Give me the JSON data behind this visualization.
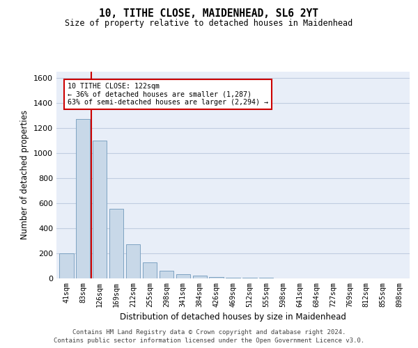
{
  "title": "10, TITHE CLOSE, MAIDENHEAD, SL6 2YT",
  "subtitle": "Size of property relative to detached houses in Maidenhead",
  "xlabel": "Distribution of detached houses by size in Maidenhead",
  "ylabel": "Number of detached properties",
  "categories": [
    "41sqm",
    "83sqm",
    "126sqm",
    "169sqm",
    "212sqm",
    "255sqm",
    "298sqm",
    "341sqm",
    "384sqm",
    "426sqm",
    "469sqm",
    "512sqm",
    "555sqm",
    "598sqm",
    "641sqm",
    "684sqm",
    "727sqm",
    "769sqm",
    "812sqm",
    "855sqm",
    "898sqm"
  ],
  "values": [
    197,
    1272,
    1097,
    554,
    270,
    130,
    60,
    35,
    20,
    10,
    7,
    5,
    3,
    2,
    1,
    1,
    0,
    0,
    0,
    0,
    0
  ],
  "bar_color": "#c8d8e8",
  "bar_edge_color": "#7099bb",
  "property_line_color": "#cc0000",
  "annotation_text": "10 TITHE CLOSE: 122sqm\n← 36% of detached houses are smaller (1,287)\n63% of semi-detached houses are larger (2,294) →",
  "annotation_box_color": "#cc0000",
  "ylim": [
    0,
    1650
  ],
  "yticks": [
    0,
    200,
    400,
    600,
    800,
    1000,
    1200,
    1400,
    1600
  ],
  "grid_color": "#c0cce0",
  "background_color": "#e8eef8",
  "footer_line1": "Contains HM Land Registry data © Crown copyright and database right 2024.",
  "footer_line2": "Contains public sector information licensed under the Open Government Licence v3.0."
}
